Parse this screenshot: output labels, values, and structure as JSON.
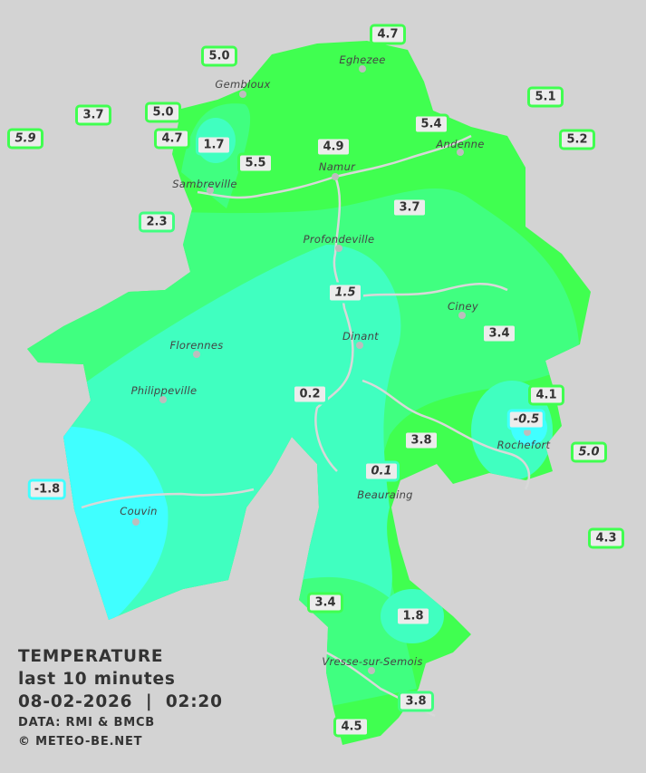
{
  "colors": {
    "background": "#d3d3d3",
    "warm_green": "#40ff50",
    "mid_green": "#40ff80",
    "teal": "#40ffc0",
    "cyan": "#40ffff",
    "river": "#d8d8d8"
  },
  "legend": {
    "title": "TEMPERATURE",
    "period": "last 10 minutes",
    "datetime": "08-02-2026  |  02:20",
    "data_source": "DATA: RMI & BMCB",
    "copyright": "© METEO-BE.NET"
  },
  "towns": [
    "Gembloux",
    "Eghezee",
    "Andenne",
    "Namur",
    "Sambreville",
    "Profondeville",
    "Ciney",
    "Dinant",
    "Florennes",
    "Philippeville",
    "Couvin",
    "Vresse-sur-Semois",
    "Rochefort",
    "Beauraing"
  ],
  "stations": [
    "5.0",
    "4.7",
    "3.7",
    "5.0",
    "5.9",
    "4.7",
    "1.7",
    "5.5",
    "4.9",
    "5.4",
    "5.1",
    "5.2",
    "2.3",
    "3.7",
    "1.5",
    "3.4",
    "0.2",
    "4.1",
    "-0.5",
    "3.8",
    "5.0",
    "0.1",
    "-1.8",
    "4.3",
    "3.4",
    "1.8",
    "3.8",
    "4.5"
  ]
}
